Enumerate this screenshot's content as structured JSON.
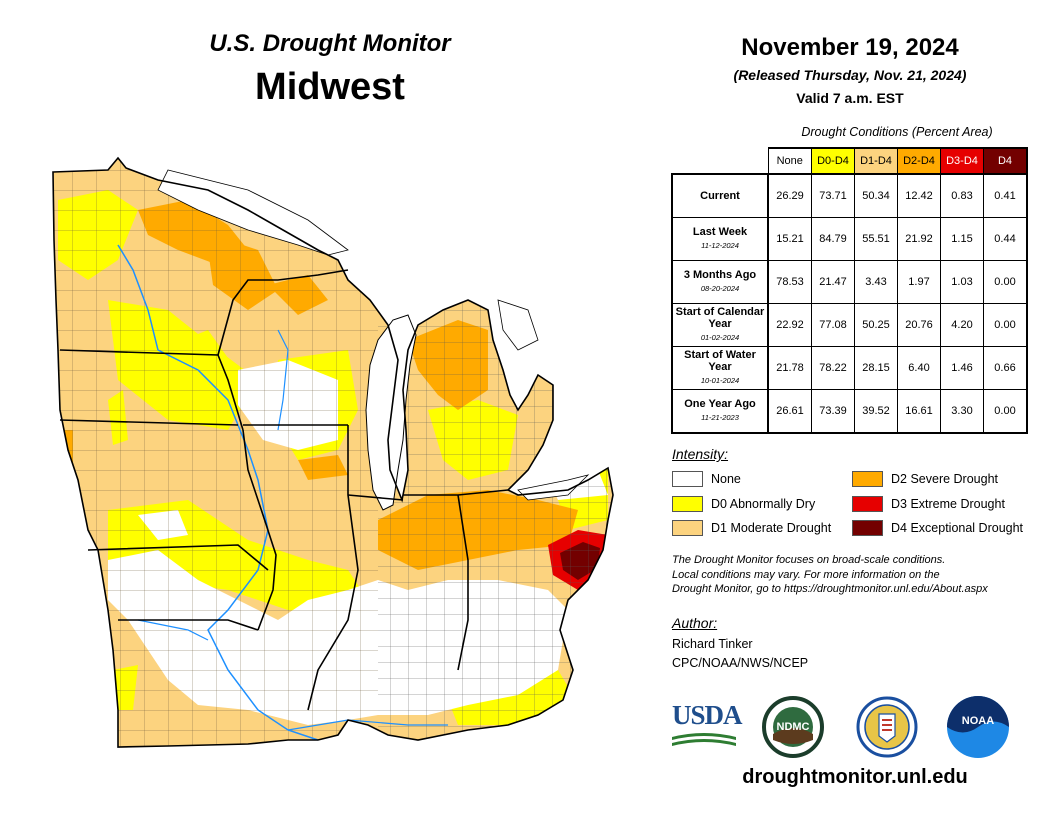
{
  "header": {
    "monitor_title": "U.S. Drought Monitor",
    "region": "Midwest",
    "date": "November 19, 2024",
    "released": "(Released Thursday, Nov. 21, 2024)",
    "valid": "Valid 7 a.m. EST"
  },
  "table": {
    "caption": "Drought Conditions (Percent Area)",
    "columns": [
      {
        "label": "None",
        "color": "#ffffff"
      },
      {
        "label": "D0-D4",
        "color": "#ffff00"
      },
      {
        "label": "D1-D4",
        "color": "#fcd37f"
      },
      {
        "label": "D2-D4",
        "color": "#ffaa00"
      },
      {
        "label": "D3-D4",
        "color": "#e60000",
        "text_color": "#ffffff"
      },
      {
        "label": "D4",
        "color": "#730000",
        "text_color": "#ffffff"
      }
    ],
    "rows": [
      {
        "label": "Current",
        "date": "",
        "values": [
          "26.29",
          "73.71",
          "50.34",
          "12.42",
          "0.83",
          "0.41"
        ]
      },
      {
        "label": "Last Week",
        "date": "11-12-2024",
        "values": [
          "15.21",
          "84.79",
          "55.51",
          "21.92",
          "1.15",
          "0.44"
        ]
      },
      {
        "label": "3 Months Ago",
        "date": "08-20-2024",
        "values": [
          "78.53",
          "21.47",
          "3.43",
          "1.97",
          "1.03",
          "0.00"
        ]
      },
      {
        "label": "Start of Calendar Year",
        "date": "01-02-2024",
        "values": [
          "22.92",
          "77.08",
          "50.25",
          "20.76",
          "4.20",
          "0.00"
        ]
      },
      {
        "label": "Start of Water Year",
        "date": "10-01-2024",
        "values": [
          "21.78",
          "78.22",
          "28.15",
          "6.40",
          "1.46",
          "0.66"
        ]
      },
      {
        "label": "One Year Ago",
        "date": "11-21-2023",
        "values": [
          "26.61",
          "73.39",
          "39.52",
          "16.61",
          "3.30",
          "0.00"
        ]
      }
    ]
  },
  "legend": {
    "heading": "Intensity:",
    "items": [
      {
        "label": "None",
        "color": "#ffffff"
      },
      {
        "label": "D0 Abnormally Dry",
        "color": "#ffff00"
      },
      {
        "label": "D1 Moderate Drought",
        "color": "#fcd37f"
      },
      {
        "label": "D2 Severe Drought",
        "color": "#ffaa00"
      },
      {
        "label": "D3 Extreme Drought",
        "color": "#e60000"
      },
      {
        "label": "D4 Exceptional Drought",
        "color": "#730000"
      }
    ]
  },
  "disclaimer": [
    "The Drought Monitor focuses on broad-scale conditions.",
    "Local conditions may vary. For more information on the",
    "Drought Monitor, go to https://droughtmonitor.unl.edu/About.aspx"
  ],
  "author": {
    "heading": "Author:",
    "name": "Richard Tinker",
    "org": "CPC/NOAA/NWS/NCEP"
  },
  "logos": {
    "usda": "USDA",
    "ndmc": "NDMC",
    "noaa": "NOAA"
  },
  "website": "droughtmonitor.unl.edu"
}
